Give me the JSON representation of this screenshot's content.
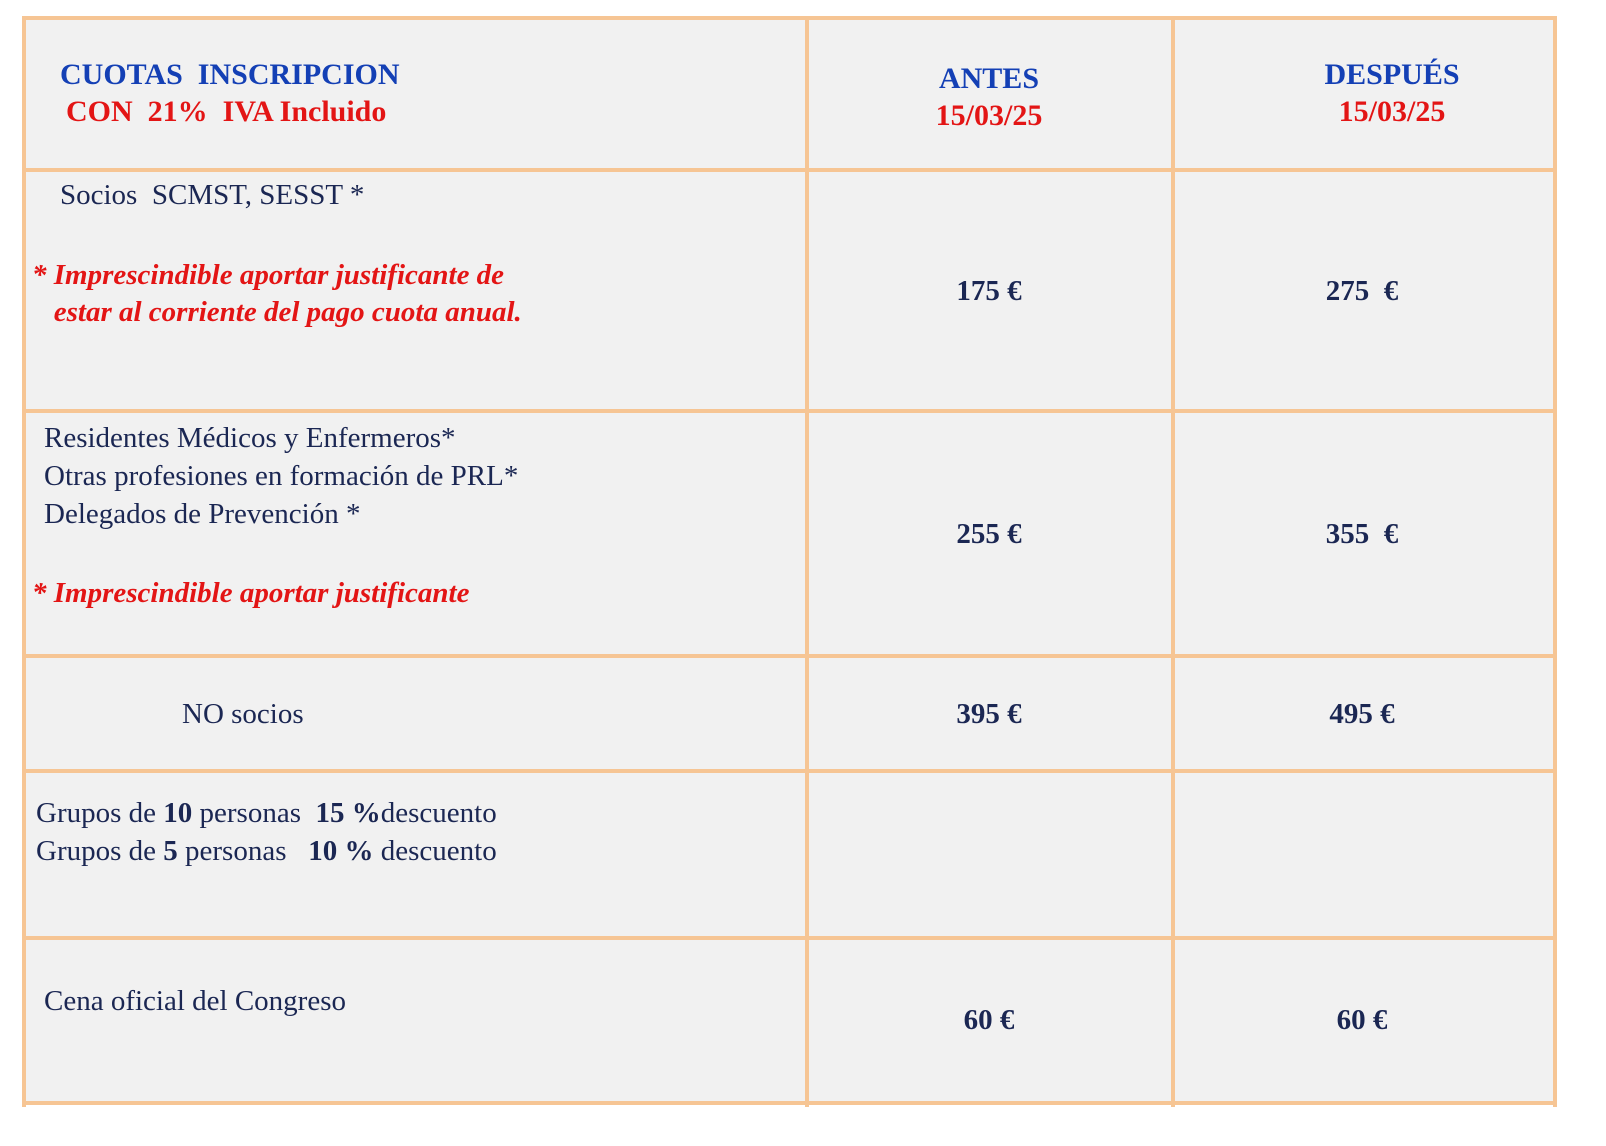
{
  "header": {
    "title": "CUOTAS  INSCRIPCION",
    "subtitle": "CON  21%  IVA Incluido",
    "col_before": {
      "label": "ANTES",
      "date": "15/03/25"
    },
    "col_after": {
      "label": "DESPUÉS",
      "date": "15/03/25"
    }
  },
  "rows": [
    {
      "lines": [
        "Socios  SCMST, SESST *"
      ],
      "note": [
        "* Imprescindible aportar justificante de",
        "   estar al corriente del pago cuota anual."
      ],
      "before": "175 €",
      "after": "275  €"
    },
    {
      "lines": [
        "Residentes Médicos y Enfermeros*",
        "Otras profesiones en formación de PRL*",
        "Delegados de Prevención *"
      ],
      "note": [
        "* Imprescindible aportar justificante"
      ],
      "before": "255 €",
      "after": "355  €"
    },
    {
      "lines": [
        "NO socios"
      ],
      "before": "395 €",
      "after": "495 €"
    },
    {
      "groups": [
        {
          "a": "Grupos de ",
          "n": "10",
          "b": " personas  ",
          "pct": "15 %",
          "c": "descuento"
        },
        {
          "a": "Grupos de ",
          "n": "5",
          "b": " personas   ",
          "pct": "10 %",
          "c": " descuento"
        }
      ]
    },
    {
      "lines": [
        "Cena oficial del Congreso"
      ],
      "before": "60 €",
      "after": "60 €"
    }
  ],
  "colors": {
    "border": "#f6c594",
    "background": "#f1f1f1",
    "text": "#1b2753",
    "accent_blue": "#1440b5",
    "accent_red": "#e31515"
  }
}
